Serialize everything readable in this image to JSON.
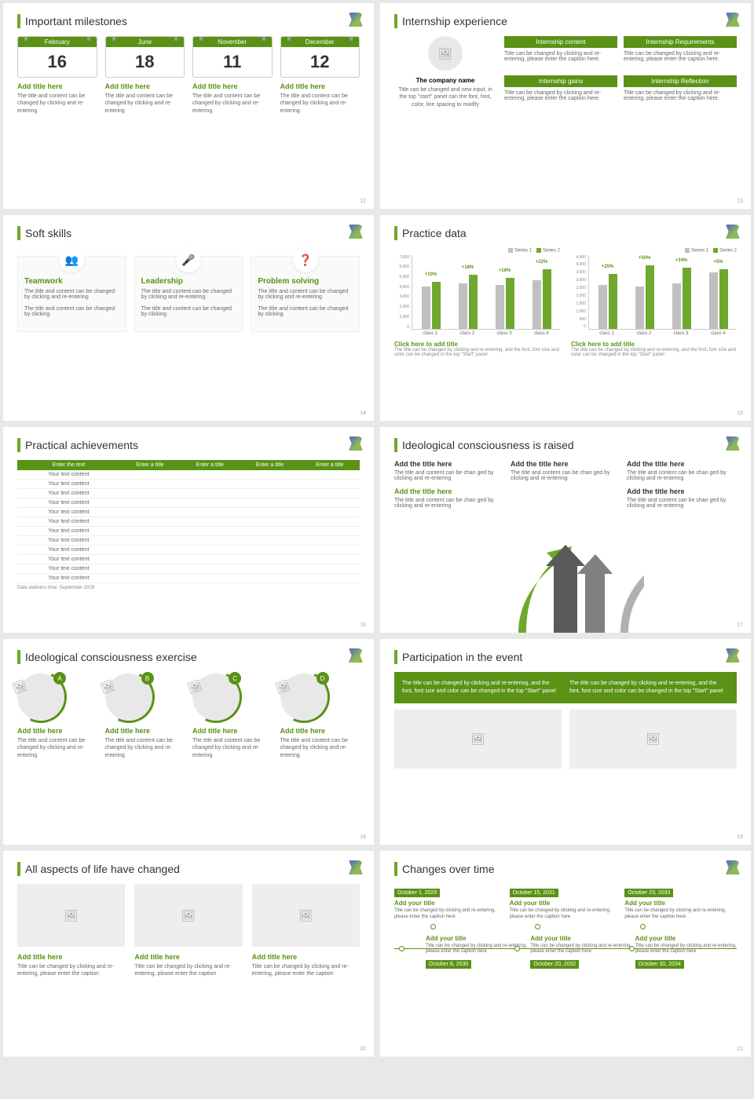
{
  "colors": {
    "accent": "#5a9216",
    "accent_light": "#6fa82c",
    "series1": "#c0c0c0",
    "series2": "#6fa82c"
  },
  "s12": {
    "title": "Important milestones",
    "page": "12",
    "items": [
      {
        "month": "February",
        "day": "16",
        "t": "Add title here",
        "b": "The title and content can be changed by clicking and re-entering"
      },
      {
        "month": "June",
        "day": "18",
        "t": "Add title here",
        "b": "The title and content can be changed by clicking and re-entering"
      },
      {
        "month": "November",
        "day": "11",
        "t": "Add title here",
        "b": "The title and content can be changed by clicking and re-entering"
      },
      {
        "month": "December",
        "day": "12",
        "t": "Add title here",
        "b": "The title and content can be changed by clicking and re-entering"
      }
    ]
  },
  "s13": {
    "title": "Internship experience",
    "page": "13",
    "company_title": "The company name",
    "company_body": "Title can be changed and new input, in the top \"start\" panel can the font, font, color, line spacing to modify",
    "boxes": [
      {
        "h": "Internship content",
        "b": "Title can be changed by clicking and re-entering, please enter the caption here."
      },
      {
        "h": "Internship Requirements",
        "b": "Title can be changed by clicking and re-entering, please enter the caption here."
      },
      {
        "h": "Internship gains",
        "b": "Title can be changed by clicking and re-entering, please enter the caption here."
      },
      {
        "h": "Internship Reflection",
        "b": "Title can be changed by clicking and re-entering, please enter the caption here."
      }
    ]
  },
  "s14": {
    "title": "Soft skills",
    "page": "14",
    "items": [
      {
        "icon": "👥",
        "t": "Teamwork",
        "b1": "The title and content can be changed by clicking and re-entering",
        "b2": "The title and content can be changed by clicking"
      },
      {
        "icon": "🎤",
        "t": "Leadership",
        "b1": "The title and content can be changed by clicking and re-entering",
        "b2": "The title and content can be changed by clicking"
      },
      {
        "icon": "❓",
        "t": "Problem solving",
        "b1": "The title and content can be changed by clicking and re-entering",
        "b2": "The title and content can be changed by clicking"
      }
    ]
  },
  "s15": {
    "title": "Practice data",
    "page": "15",
    "legend_s1": "Series 1",
    "legend_s2": "Series 2",
    "chart1": {
      "ymax": 7000,
      "yticks": [
        "7,000",
        "6,000",
        "5,000",
        "4,000",
        "3,000",
        "2,000",
        "1,000",
        "0"
      ],
      "cats": [
        "class 1",
        "class 2",
        "class 3",
        "class 4"
      ],
      "s1": [
        4200,
        4500,
        4300,
        4800
      ],
      "s2": [
        4620,
        5310,
        4988,
        5856
      ],
      "pct": [
        "+10%",
        "+18%",
        "+16%",
        "+22%"
      ],
      "title": "Click here to add title",
      "body": "The title can be changed by clicking and re-entering, and the font, font size and color can be changed in the top \"Start\" panel"
    },
    "chart2": {
      "ymax": 4500,
      "yticks": [
        "4,500",
        "4,000",
        "3,500",
        "3,000",
        "2,500",
        "2,000",
        "1,500",
        "1,000",
        "500",
        "0"
      ],
      "cats": [
        "class 1",
        "class 2",
        "class 3",
        "class 4"
      ],
      "s1": [
        2800,
        2700,
        2900,
        3600
      ],
      "s2": [
        3500,
        4050,
        3886,
        3780
      ],
      "pct": [
        "+25%",
        "+50%",
        "+34%",
        "+5%"
      ],
      "title": "Click here to add title",
      "body": "The title can be changed by clicking and re-entering, and the font, font size and color can be changed in the top \"Start\" panel"
    }
  },
  "s16": {
    "title": "Practical achievements",
    "page": "16",
    "headers": [
      "Enter the text",
      "Enter a title",
      "Enter a title",
      "Enter a title",
      "Enter a title"
    ],
    "row_text": "Your text content",
    "rows": 12,
    "foot": "Data statistics time: September 2029"
  },
  "s17": {
    "title": "Ideological consciousness is raised",
    "page": "17",
    "items": [
      {
        "t": "Add the title here",
        "b": "The title and content can be chan ged by clicking and re-entering",
        "color": "#333"
      },
      {
        "t": "Add the title here",
        "b": "The title and content can be chan ged by clicking and re-entering",
        "color": "#333"
      },
      {
        "t": "Add the title here",
        "b": "The title and content can be chan ged by clicking and re-entering",
        "color": "#333"
      },
      {
        "t": "Add the title here",
        "b": "The title and content can be chan ged by clicking and re-entering",
        "color": "#5a9216"
      },
      {
        "t": "Add the title here",
        "b": "The title and content can be chan ged by clicking and re-entering",
        "color": "#333"
      }
    ],
    "arrow_colors": [
      "#6fa82c",
      "#5a5a5a",
      "#808080",
      "#b0b0b0"
    ]
  },
  "s18": {
    "title": "Ideological consciousness exercise",
    "page": "18",
    "items": [
      {
        "badge": "A",
        "t": "Add title here",
        "b": "The title and content can be changed by clicking and re-entering"
      },
      {
        "badge": "B",
        "t": "Add title here",
        "b": "The title and content can be changed by clicking and re-entering"
      },
      {
        "badge": "C",
        "t": "Add title here",
        "b": "The title and content can be changed by clicking and re-entering"
      },
      {
        "badge": "D",
        "t": "Add title here",
        "b": "The title and content can be changed by clicking and re-entering"
      }
    ]
  },
  "s19": {
    "title": "Participation in the event",
    "page": "19",
    "top1": "The title can be changed by clicking and re-entering, and the font, font size and color can be changed in the top \"Start\" panel",
    "top2": "The title can be changed by clicking and re-entering, and the font, font size and color can be changed in the top \"Start\" panel"
  },
  "s20": {
    "title": "All aspects of life have changed",
    "page": "20",
    "items": [
      {
        "t": "Add title here",
        "b": "Title can be changed by clicking and re-entering, please enter the caption"
      },
      {
        "t": "Add title here",
        "b": "Title can be changed by clicking and re-entering, please enter the caption"
      },
      {
        "t": "Add title here",
        "b": "Title can be changed by clicking and re-entering, please enter the caption"
      }
    ]
  },
  "s21": {
    "title": "Changes over time",
    "page": "21",
    "top": [
      {
        "date": "October 1, 2029",
        "t": "Add your title",
        "b": "Title can be changed by clicking and re-entering, please enter the caption here"
      },
      {
        "date": "October 15, 2031",
        "t": "Add your title",
        "b": "Title can be changed by clicking and re-entering, please enter the caption here"
      },
      {
        "date": "October 23, 2033",
        "t": "Add your title",
        "b": "Title can be changed by clicking and re-entering, please enter the caption here"
      }
    ],
    "bot": [
      {
        "date": "October 8, 2030",
        "t": "Add your title",
        "b": "Title can be changed by clicking and re-entering, please enter the caption here"
      },
      {
        "date": "October 20, 2032",
        "t": "Add your title",
        "b": "Title can be changed by clicking and re-entering, please enter the caption here"
      },
      {
        "date": "October 30, 2034",
        "t": "Add your title",
        "b": "Title can be changed by clicking and re-entering, please enter the caption here"
      }
    ]
  }
}
